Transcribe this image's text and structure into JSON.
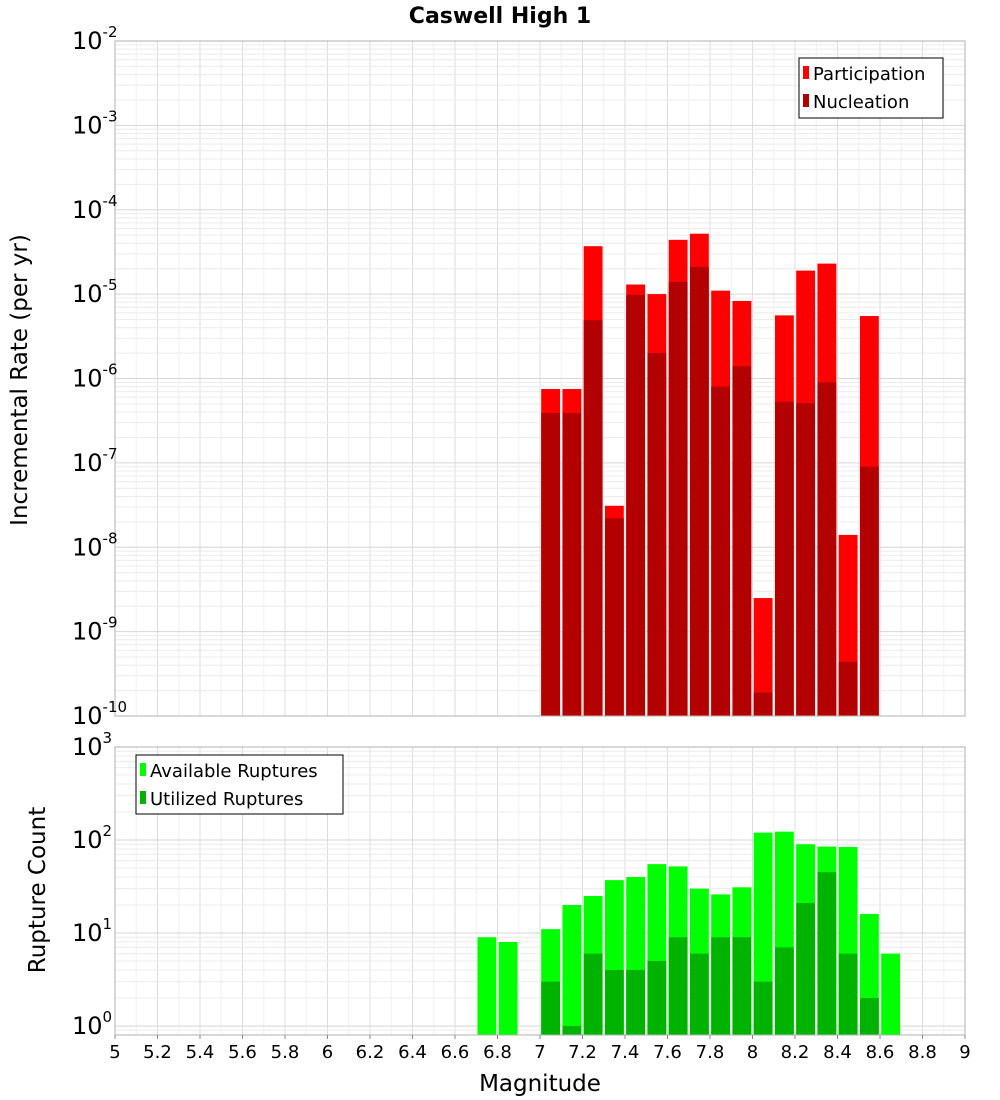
{
  "chart_data": [
    {
      "id": "rates",
      "type": "bar",
      "title": "Caswell High 1",
      "xlabel": "",
      "ylabel": "Incremental Rate (per yr)",
      "yscale": "log",
      "xlim": [
        5,
        9
      ],
      "ylim": [
        1e-10,
        0.01
      ],
      "bin_width": 0.1,
      "grid": true,
      "legend_position": "top-right",
      "x": [
        7.05,
        7.15,
        7.25,
        7.35,
        7.45,
        7.55,
        7.65,
        7.75,
        7.85,
        7.95,
        8.05,
        8.15,
        8.25,
        8.35,
        8.45,
        8.55
      ],
      "series": [
        {
          "name": "Participation",
          "color": "#ff0000",
          "values": [
            7.5e-07,
            7.5e-07,
            3.7e-05,
            3.1e-08,
            1.3e-05,
            1e-05,
            4.4e-05,
            5.2e-05,
            1.1e-05,
            8.3e-06,
            2.5e-09,
            5.6e-06,
            1.9e-05,
            2.3e-05,
            1.4e-08,
            5.5e-06
          ]
        },
        {
          "name": "Nucleation",
          "color": "#b30000",
          "values": [
            3.9e-07,
            3.9e-07,
            4.9e-06,
            2.2e-08,
            9.8e-06,
            2e-06,
            1.4e-05,
            2.1e-05,
            8e-07,
            1.4e-06,
            1.9e-10,
            5.3e-07,
            5.1e-07,
            9e-07,
            4.4e-10,
            9e-08
          ]
        }
      ]
    },
    {
      "id": "counts",
      "type": "bar",
      "title": "",
      "xlabel": "Magnitude",
      "ylabel": "Rupture Count",
      "yscale": "log",
      "xlim": [
        5,
        9
      ],
      "ylim": [
        0.8,
        1000
      ],
      "bin_width": 0.1,
      "grid": true,
      "legend_position": "top-left",
      "x_ticks": [
        "5",
        "5.2",
        "5.4",
        "5.6",
        "5.8",
        "6",
        "6.2",
        "6.4",
        "6.6",
        "6.8",
        "7",
        "7.2",
        "7.4",
        "7.6",
        "7.8",
        "8",
        "8.2",
        "8.4",
        "8.6",
        "8.8",
        "9"
      ],
      "series": [
        {
          "name": "Available Ruptures",
          "color": "#00ff00",
          "x": [
            6.75,
            6.85,
            7.05,
            7.15,
            7.25,
            7.35,
            7.45,
            7.55,
            7.65,
            7.75,
            7.85,
            7.95,
            8.05,
            8.15,
            8.25,
            8.35,
            8.45,
            8.55,
            8.65
          ],
          "values": [
            9,
            8,
            11,
            20,
            25,
            37,
            40,
            55,
            52,
            30,
            26,
            31,
            120,
            123,
            90,
            85,
            84,
            16,
            6
          ]
        },
        {
          "name": "Utilized Ruptures",
          "color": "#00b300",
          "x": [
            7.05,
            7.15,
            7.25,
            7.35,
            7.45,
            7.55,
            7.65,
            7.75,
            7.85,
            7.95,
            8.05,
            8.15,
            8.25,
            8.35,
            8.45,
            8.55
          ],
          "values": [
            3,
            1,
            6,
            4,
            4,
            5,
            9,
            6,
            9,
            9,
            3,
            7,
            21,
            45,
            6,
            2
          ]
        }
      ]
    }
  ],
  "y_tick_labels_top": [
    {
      "base": "10",
      "exp": "-2"
    },
    {
      "base": "10",
      "exp": "-3"
    },
    {
      "base": "10",
      "exp": "-4"
    },
    {
      "base": "10",
      "exp": "-5"
    },
    {
      "base": "10",
      "exp": "-6"
    },
    {
      "base": "10",
      "exp": "-7"
    },
    {
      "base": "10",
      "exp": "-8"
    },
    {
      "base": "10",
      "exp": "-9"
    },
    {
      "base": "10",
      "exp": "-10"
    }
  ],
  "y_tick_labels_bottom": [
    {
      "base": "10",
      "exp": "3"
    },
    {
      "base": "10",
      "exp": "2"
    },
    {
      "base": "10",
      "exp": "1"
    },
    {
      "base": "10",
      "exp": "0"
    }
  ]
}
